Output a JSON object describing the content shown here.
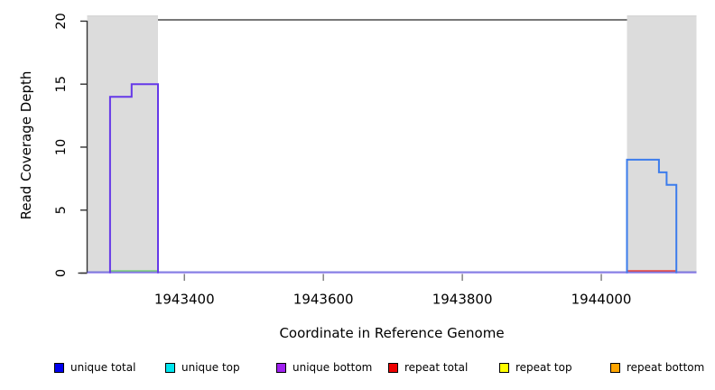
{
  "chart_data": {
    "type": "line",
    "title": "",
    "xlabel": "Coordinate in Reference Genome",
    "ylabel": "Read Coverage Depth",
    "xlim": [
      1943260,
      1944137
    ],
    "ylim": [
      0,
      20.44
    ],
    "xticks": [
      1943400,
      1943600,
      1943800,
      1944000
    ],
    "yticks": [
      0,
      5,
      10,
      15,
      20
    ],
    "grid": false,
    "legend_position": "bottom",
    "cap_line": {
      "y": 20.1,
      "color": "#787878",
      "width": 2
    },
    "shaded_regions": [
      {
        "name": "left-shaded-region",
        "x0": 1943260,
        "x1": 1943362,
        "color": "#DCDCDC",
        "edge_color": "#CFCFCF"
      },
      {
        "name": "right-shaded-region",
        "x0": 1944037,
        "x1": 1944137,
        "color": "#DCDCDC",
        "edge_color": "#CFCFCF"
      }
    ],
    "series": [
      {
        "name": "baseline-light",
        "color": "#B2A2F4",
        "width": 1.2,
        "points": [
          [
            1943260,
            0.0
          ],
          [
            1944137,
            0.0
          ]
        ]
      },
      {
        "name": "baseline-dark",
        "color": "#5F5BD8",
        "width": 1.2,
        "points": [
          [
            1943260,
            0.09
          ],
          [
            1944137,
            0.09
          ]
        ]
      },
      {
        "name": "green-baseline-segment",
        "color": "#7CCD7C",
        "width": 1.4,
        "points": [
          [
            1943293,
            0.18
          ],
          [
            1943362,
            0.18
          ]
        ]
      },
      {
        "name": "repeat-total-segment",
        "color": "#E8433D",
        "width": 1.5,
        "points": [
          [
            1944037,
            0.18
          ],
          [
            1944108,
            0.18
          ]
        ]
      },
      {
        "name": "unique-bottom-left-peak",
        "color": "#6538E8",
        "width": 2,
        "points": [
          [
            1943293,
            0
          ],
          [
            1943293,
            14
          ],
          [
            1943324,
            14
          ],
          [
            1943324,
            15
          ],
          [
            1943362,
            15
          ],
          [
            1943362,
            0
          ]
        ]
      },
      {
        "name": "unique-total-right-peak",
        "color": "#3C7CEC",
        "width": 2,
        "points": [
          [
            1944037,
            0
          ],
          [
            1944037,
            9
          ],
          [
            1944083,
            9
          ],
          [
            1944083,
            8
          ],
          [
            1944094,
            8
          ],
          [
            1944094,
            7
          ],
          [
            1944108,
            7
          ],
          [
            1944108,
            0
          ]
        ]
      }
    ]
  },
  "legend": {
    "items": [
      {
        "label": "unique total",
        "color": "#0000EE"
      },
      {
        "label": "unique top",
        "color": "#00E5EE"
      },
      {
        "label": "unique bottom",
        "color": "#A020F0"
      },
      {
        "label": "repeat total",
        "color": "#EE0000"
      },
      {
        "label": "repeat top",
        "color": "#FFFF00"
      },
      {
        "label": "repeat bottom",
        "color": "#FFA500"
      }
    ]
  }
}
